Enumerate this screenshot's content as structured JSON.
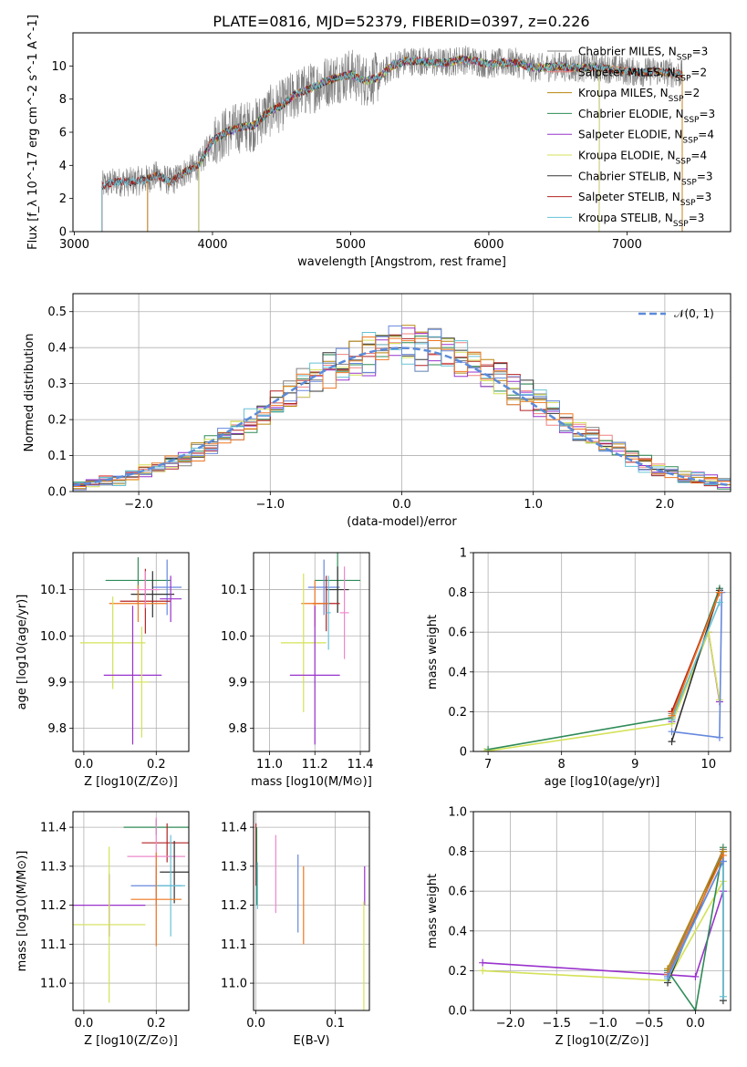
{
  "figure_title": "PLATE=0816, MJD=52379, FIBERID=0397, z=0.226",
  "colors": {
    "Chabrier MILES": "#808080",
    "Salpeter MILES": "#f08080",
    "Kroupa MILES": "#b8860b",
    "Chabrier ELODIE": "#2e8b57",
    "Salpeter ELODIE": "#9932cc",
    "Kroupa ELODIE": "#d4e157",
    "Chabrier STELIB": "#333333",
    "Salpeter STELIB": "#b22222",
    "Kroupa STELIB": "#66c2d6",
    "extra_blue": "#6688dd",
    "extra_orange": "#ee7722",
    "extra_pink": "#ee88cc",
    "normal_curve": "#5b8bd9"
  },
  "chart_data": [
    {
      "id": "spectrum",
      "type": "line",
      "xlabel": "wavelength [Angstrom, rest frame]",
      "ylabel": "Flux [f_λ 10^-17 erg cm^-2 s^-1 A^-1]",
      "xlim": [
        2990,
        7750
      ],
      "ylim": [
        0,
        12
      ],
      "xticks": [
        3000,
        4000,
        5000,
        6000,
        7000
      ],
      "yticks": [
        0,
        2,
        4,
        6,
        8,
        10
      ],
      "legend_position": "right",
      "legend": [
        {
          "label": "Chabrier MILES, N_SSP=3",
          "color": "#808080"
        },
        {
          "label": "Salpeter MILES, N_SSP=2",
          "color": "#f08080"
        },
        {
          "label": "Kroupa MILES, N_SSP=2",
          "color": "#b8860b"
        },
        {
          "label": "Chabrier ELODIE, N_SSP=3",
          "color": "#2e8b57"
        },
        {
          "label": "Salpeter ELODIE, N_SSP=4",
          "color": "#9932cc"
        },
        {
          "label": "Kroupa ELODIE, N_SSP=4",
          "color": "#d4e157"
        },
        {
          "label": "Chabrier STELIB, N_SSP=3",
          "color": "#333333"
        },
        {
          "label": "Salpeter STELIB, N_SSP=3",
          "color": "#b22222"
        },
        {
          "label": "Kroupa STELIB, N_SSP=3",
          "color": "#66c2d6"
        }
      ],
      "model_start": {
        "MILES": 3530,
        "ELODIE": 3900,
        "STELIB": 3200
      },
      "model_end": {
        "MILES": 7400,
        "ELODIE": 6800,
        "STELIB": 7400
      },
      "continuum": [
        [
          3200,
          2.8
        ],
        [
          3300,
          3.0
        ],
        [
          3400,
          3.0
        ],
        [
          3500,
          3.1
        ],
        [
          3600,
          3.4
        ],
        [
          3700,
          3.0
        ],
        [
          3800,
          3.6
        ],
        [
          3900,
          4.0
        ],
        [
          4000,
          5.5
        ],
        [
          4100,
          6.0
        ],
        [
          4200,
          6.3
        ],
        [
          4300,
          6.4
        ],
        [
          4400,
          7.2
        ],
        [
          4500,
          7.6
        ],
        [
          4600,
          8.3
        ],
        [
          4700,
          8.6
        ],
        [
          4800,
          9.0
        ],
        [
          4900,
          9.3
        ],
        [
          5000,
          9.5
        ],
        [
          5100,
          9.1
        ],
        [
          5200,
          9.3
        ],
        [
          5300,
          10.0
        ],
        [
          5400,
          10.3
        ],
        [
          5500,
          10.3
        ],
        [
          5600,
          10.2
        ],
        [
          5700,
          10.2
        ],
        [
          5800,
          10.4
        ],
        [
          5900,
          10.3
        ],
        [
          6000,
          10.1
        ],
        [
          6100,
          10.2
        ],
        [
          6200,
          10.2
        ],
        [
          6300,
          9.9
        ],
        [
          6400,
          9.9
        ],
        [
          6500,
          10.0
        ],
        [
          6600,
          9.9
        ],
        [
          6700,
          9.9
        ],
        [
          6800,
          9.9
        ],
        [
          6900,
          9.8
        ],
        [
          7000,
          9.7
        ],
        [
          7100,
          9.6
        ],
        [
          7200,
          9.7
        ],
        [
          7300,
          9.6
        ],
        [
          7400,
          9.5
        ]
      ]
    },
    {
      "id": "residuals",
      "type": "histogram",
      "xlabel": "(data-model)/error",
      "ylabel": "Normed distribution",
      "xlim": [
        -2.5,
        2.5
      ],
      "ylim": [
        0,
        0.55
      ],
      "xticks": [
        -2,
        -1,
        0,
        1,
        2
      ],
      "yticks": [
        0.0,
        0.1,
        0.2,
        0.3,
        0.4,
        0.5
      ],
      "legend_position": "top-right",
      "legend": [
        {
          "label": "𝒩(0, 1)",
          "color": "#5b8bd9",
          "style": "dashed"
        }
      ],
      "bin_width": 0.1
    },
    {
      "id": "age_vs_Z",
      "type": "scatter",
      "xlabel": "Z [log10(Z/Z⊙)]",
      "ylabel": "age [log10(age/yr)]",
      "xlim": [
        -0.03,
        0.29
      ],
      "ylim": [
        9.75,
        10.18
      ],
      "xticks": [
        0.0,
        0.2
      ],
      "yticks": [
        9.8,
        9.9,
        10.0,
        10.1
      ],
      "points": [
        {
          "x": 0.15,
          "y": 10.12,
          "xerr": 0.09,
          "yerr": 0.05,
          "color": "#2e8b57"
        },
        {
          "x": 0.23,
          "y": 10.105,
          "xerr": 0.04,
          "yerr": 0.06,
          "color": "#6688dd"
        },
        {
          "x": 0.19,
          "y": 10.09,
          "xerr": 0.06,
          "yerr": 0.05,
          "color": "#333333"
        },
        {
          "x": 0.17,
          "y": 10.075,
          "xerr": 0.07,
          "yerr": 0.07,
          "color": "#b22222"
        },
        {
          "x": 0.15,
          "y": 10.07,
          "xerr": 0.08,
          "yerr": 0.04,
          "color": "#ee7722"
        },
        {
          "x": 0.17,
          "y": 10.1,
          "xerr": 0.04,
          "yerr": 0.04,
          "color": "#ee88cc"
        },
        {
          "x": 0.24,
          "y": 10.08,
          "xerr": 0.03,
          "yerr": 0.05,
          "color": "#9932cc"
        },
        {
          "x": 0.08,
          "y": 9.985,
          "xerr": 0.09,
          "yerr": 0.1,
          "color": "#d4e157"
        },
        {
          "x": 0.135,
          "y": 9.915,
          "xerr": 0.08,
          "yerr": 0.15,
          "color": "#9932cc"
        },
        {
          "x": 0.16,
          "y": 9.9,
          "xerr": 0.02,
          "yerr": 0.12,
          "color": "#d4e157"
        }
      ]
    },
    {
      "id": "age_vs_mass",
      "type": "scatter",
      "xlabel": "mass [log10(M/M⊙)]",
      "ylabel": "",
      "xlim": [
        10.93,
        11.44
      ],
      "ylim": [
        9.75,
        10.18
      ],
      "xticks": [
        11.0,
        11.2,
        11.4
      ],
      "yticks": [
        9.8,
        9.9,
        10.0,
        10.1
      ],
      "points": [
        {
          "x": 11.3,
          "y": 10.12,
          "xerr": 0.1,
          "yerr": 0.07,
          "color": "#2e8b57"
        },
        {
          "x": 11.24,
          "y": 10.105,
          "xerr": 0.07,
          "yerr": 0.06,
          "color": "#6688dd"
        },
        {
          "x": 11.3,
          "y": 10.1,
          "xerr": 0.05,
          "yerr": 0.05,
          "color": "#333333"
        },
        {
          "x": 11.25,
          "y": 10.07,
          "xerr": 0.06,
          "yerr": 0.06,
          "color": "#b22222"
        },
        {
          "x": 11.2,
          "y": 10.07,
          "xerr": 0.06,
          "yerr": 0.05,
          "color": "#ee7722"
        },
        {
          "x": 11.33,
          "y": 10.05,
          "xerr": 0.02,
          "yerr": 0.1,
          "color": "#ee88cc"
        },
        {
          "x": 11.26,
          "y": 10.05,
          "xerr": 0.01,
          "yerr": 0.08,
          "color": "#66c2d6"
        },
        {
          "x": 11.15,
          "y": 9.985,
          "xerr": 0.1,
          "yerr": 0.15,
          "color": "#d4e157"
        },
        {
          "x": 11.2,
          "y": 9.915,
          "xerr": 0.11,
          "yerr": 0.15,
          "color": "#9932cc"
        }
      ]
    },
    {
      "id": "weight_vs_age",
      "type": "line",
      "xlabel": "age [log10(age/yr)]",
      "ylabel": "mass weight",
      "xlim": [
        6.8,
        10.3
      ],
      "ylim": [
        0.0,
        1.0
      ],
      "xticks": [
        7,
        8,
        9,
        10
      ],
      "yticks": [
        0.0,
        0.2,
        0.4,
        0.6,
        0.8,
        1.0
      ],
      "series": [
        {
          "color": "#808080",
          "x": [
            9.5,
            10.15
          ],
          "y": [
            0.19,
            0.81
          ]
        },
        {
          "color": "#b8860b",
          "x": [
            9.5,
            10.15
          ],
          "y": [
            0.2,
            0.8
          ]
        },
        {
          "color": "#2e8b57",
          "x": [
            7.0,
            9.5,
            10.15
          ],
          "y": [
            0.01,
            0.17,
            0.82
          ]
        },
        {
          "color": "#9932cc",
          "x": [
            9.5,
            10.0,
            10.15
          ],
          "y": [
            0.15,
            0.6,
            0.25
          ]
        },
        {
          "color": "#d4e157",
          "x": [
            6.95,
            9.5,
            10.0,
            10.15
          ],
          "y": [
            0.0,
            0.14,
            0.6,
            0.26
          ]
        },
        {
          "color": "#333333",
          "x": [
            9.5,
            10.15
          ],
          "y": [
            0.05,
            0.81
          ]
        },
        {
          "color": "#b22222",
          "x": [
            9.5,
            10.15
          ],
          "y": [
            0.2,
            0.8
          ]
        },
        {
          "color": "#6688dd",
          "x": [
            9.5,
            10.15,
            10.18
          ],
          "y": [
            0.1,
            0.07,
            0.8
          ]
        },
        {
          "color": "#66c2d6",
          "x": [
            9.5,
            10.15
          ],
          "y": [
            0.16,
            0.75
          ]
        },
        {
          "color": "#ee7722",
          "x": [
            9.5,
            10.15
          ],
          "y": [
            0.18,
            0.8
          ]
        }
      ]
    },
    {
      "id": "mass_vs_Z",
      "type": "scatter",
      "xlabel": "Z [log10(Z/Z⊙)]",
      "ylabel": "mass [log10(M/M⊙)]",
      "xlim": [
        -0.03,
        0.29
      ],
      "ylim": [
        10.93,
        11.44
      ],
      "xticks": [
        0.0,
        0.2
      ],
      "yticks": [
        11.0,
        11.1,
        11.2,
        11.3,
        11.4
      ],
      "points": [
        {
          "x": 0.2,
          "y": 11.4,
          "xerr": 0.09,
          "yerr": 0.02,
          "color": "#2e8b57"
        },
        {
          "x": 0.23,
          "y": 11.36,
          "xerr": 0.07,
          "yerr": 0.05,
          "color": "#b22222"
        },
        {
          "x": 0.2,
          "y": 11.325,
          "xerr": 0.08,
          "yerr": 0.1,
          "color": "#ee88cc"
        },
        {
          "x": 0.25,
          "y": 11.285,
          "xerr": 0.04,
          "yerr": 0.08,
          "color": "#333333"
        },
        {
          "x": 0.2,
          "y": 11.25,
          "xerr": 0.07,
          "yerr": 0.05,
          "color": "#6688dd"
        },
        {
          "x": 0.24,
          "y": 11.25,
          "xerr": 0.04,
          "yerr": 0.13,
          "color": "#66c2d6"
        },
        {
          "x": 0.2,
          "y": 11.215,
          "xerr": 0.07,
          "yerr": 0.12,
          "color": "#ee7722"
        },
        {
          "x": 0.07,
          "y": 11.2,
          "xerr": 0.1,
          "yerr": 0.08,
          "color": "#9932cc"
        },
        {
          "x": 0.07,
          "y": 11.15,
          "xerr": 0.1,
          "yerr": 0.2,
          "color": "#d4e157"
        }
      ]
    },
    {
      "id": "mass_vs_EBV",
      "type": "scatter",
      "xlabel": "E(B-V)",
      "ylabel": "",
      "xlim": [
        -0.003,
        0.143
      ],
      "ylim": [
        10.93,
        11.44
      ],
      "xticks": [
        0.0,
        0.1
      ],
      "yticks": [
        11.0,
        11.1,
        11.2,
        11.3,
        11.4
      ],
      "points": [
        {
          "x": 0.0,
          "y": 11.33,
          "xerr": 0,
          "yerr": 0.08,
          "color": "#b22222"
        },
        {
          "x": 0.001,
          "y": 11.3,
          "xerr": 0,
          "yerr": 0.1,
          "color": "#2e8b57"
        },
        {
          "x": 0.002,
          "y": 11.25,
          "xerr": 0,
          "yerr": 0.06,
          "color": "#66c2d6"
        },
        {
          "x": 0.025,
          "y": 11.28,
          "xerr": 0,
          "yerr": 0.1,
          "color": "#ee88cc"
        },
        {
          "x": 0.053,
          "y": 11.23,
          "xerr": 0,
          "yerr": 0.1,
          "color": "#6688dd"
        },
        {
          "x": 0.06,
          "y": 11.2,
          "xerr": 0,
          "yerr": 0.1,
          "color": "#ee7722"
        },
        {
          "x": 0.137,
          "y": 11.25,
          "xerr": 0,
          "yerr": 0.05,
          "color": "#9932cc"
        },
        {
          "x": 0.136,
          "y": 11.06,
          "xerr": 0,
          "yerr": 0.15,
          "color": "#d4e157"
        }
      ]
    },
    {
      "id": "weight_vs_Z",
      "type": "line",
      "xlabel": "Z [log10(Z/Z⊙)]",
      "ylabel": "mass weight",
      "xlim": [
        -2.4,
        0.38
      ],
      "ylim": [
        0.0,
        1.0
      ],
      "xticks": [
        -2.0,
        -1.5,
        -1.0,
        -0.5,
        0.0
      ],
      "yticks": [
        0.0,
        0.2,
        0.4,
        0.6,
        0.8,
        1.0
      ],
      "series": [
        {
          "color": "#9932cc",
          "x": [
            -2.3,
            -0.3,
            0.0,
            0.3
          ],
          "y": [
            0.24,
            0.18,
            0.17,
            0.6
          ]
        },
        {
          "color": "#d4e157",
          "x": [
            -2.3,
            -0.3,
            0.3
          ],
          "y": [
            0.2,
            0.15,
            0.65
          ]
        },
        {
          "color": "#2e8b57",
          "x": [
            -0.3,
            0.0,
            0.3
          ],
          "y": [
            0.2,
            0.0,
            0.82
          ]
        },
        {
          "color": "#808080",
          "x": [
            -0.3,
            0.3
          ],
          "y": [
            0.19,
            0.81
          ]
        },
        {
          "color": "#333333",
          "x": [
            -0.3,
            0.3,
            0.3
          ],
          "y": [
            0.14,
            0.8,
            0.05
          ]
        },
        {
          "color": "#b8860b",
          "x": [
            -0.3,
            0.3
          ],
          "y": [
            0.21,
            0.8
          ]
        },
        {
          "color": "#ee7722",
          "x": [
            -0.3,
            0.3
          ],
          "y": [
            0.18,
            0.78
          ]
        },
        {
          "color": "#66c2d6",
          "x": [
            -0.3,
            0.3,
            0.3
          ],
          "y": [
            0.16,
            0.75,
            0.07
          ]
        },
        {
          "color": "#6688dd",
          "x": [
            -0.3,
            0.3
          ],
          "y": [
            0.17,
            0.75
          ]
        }
      ]
    }
  ]
}
